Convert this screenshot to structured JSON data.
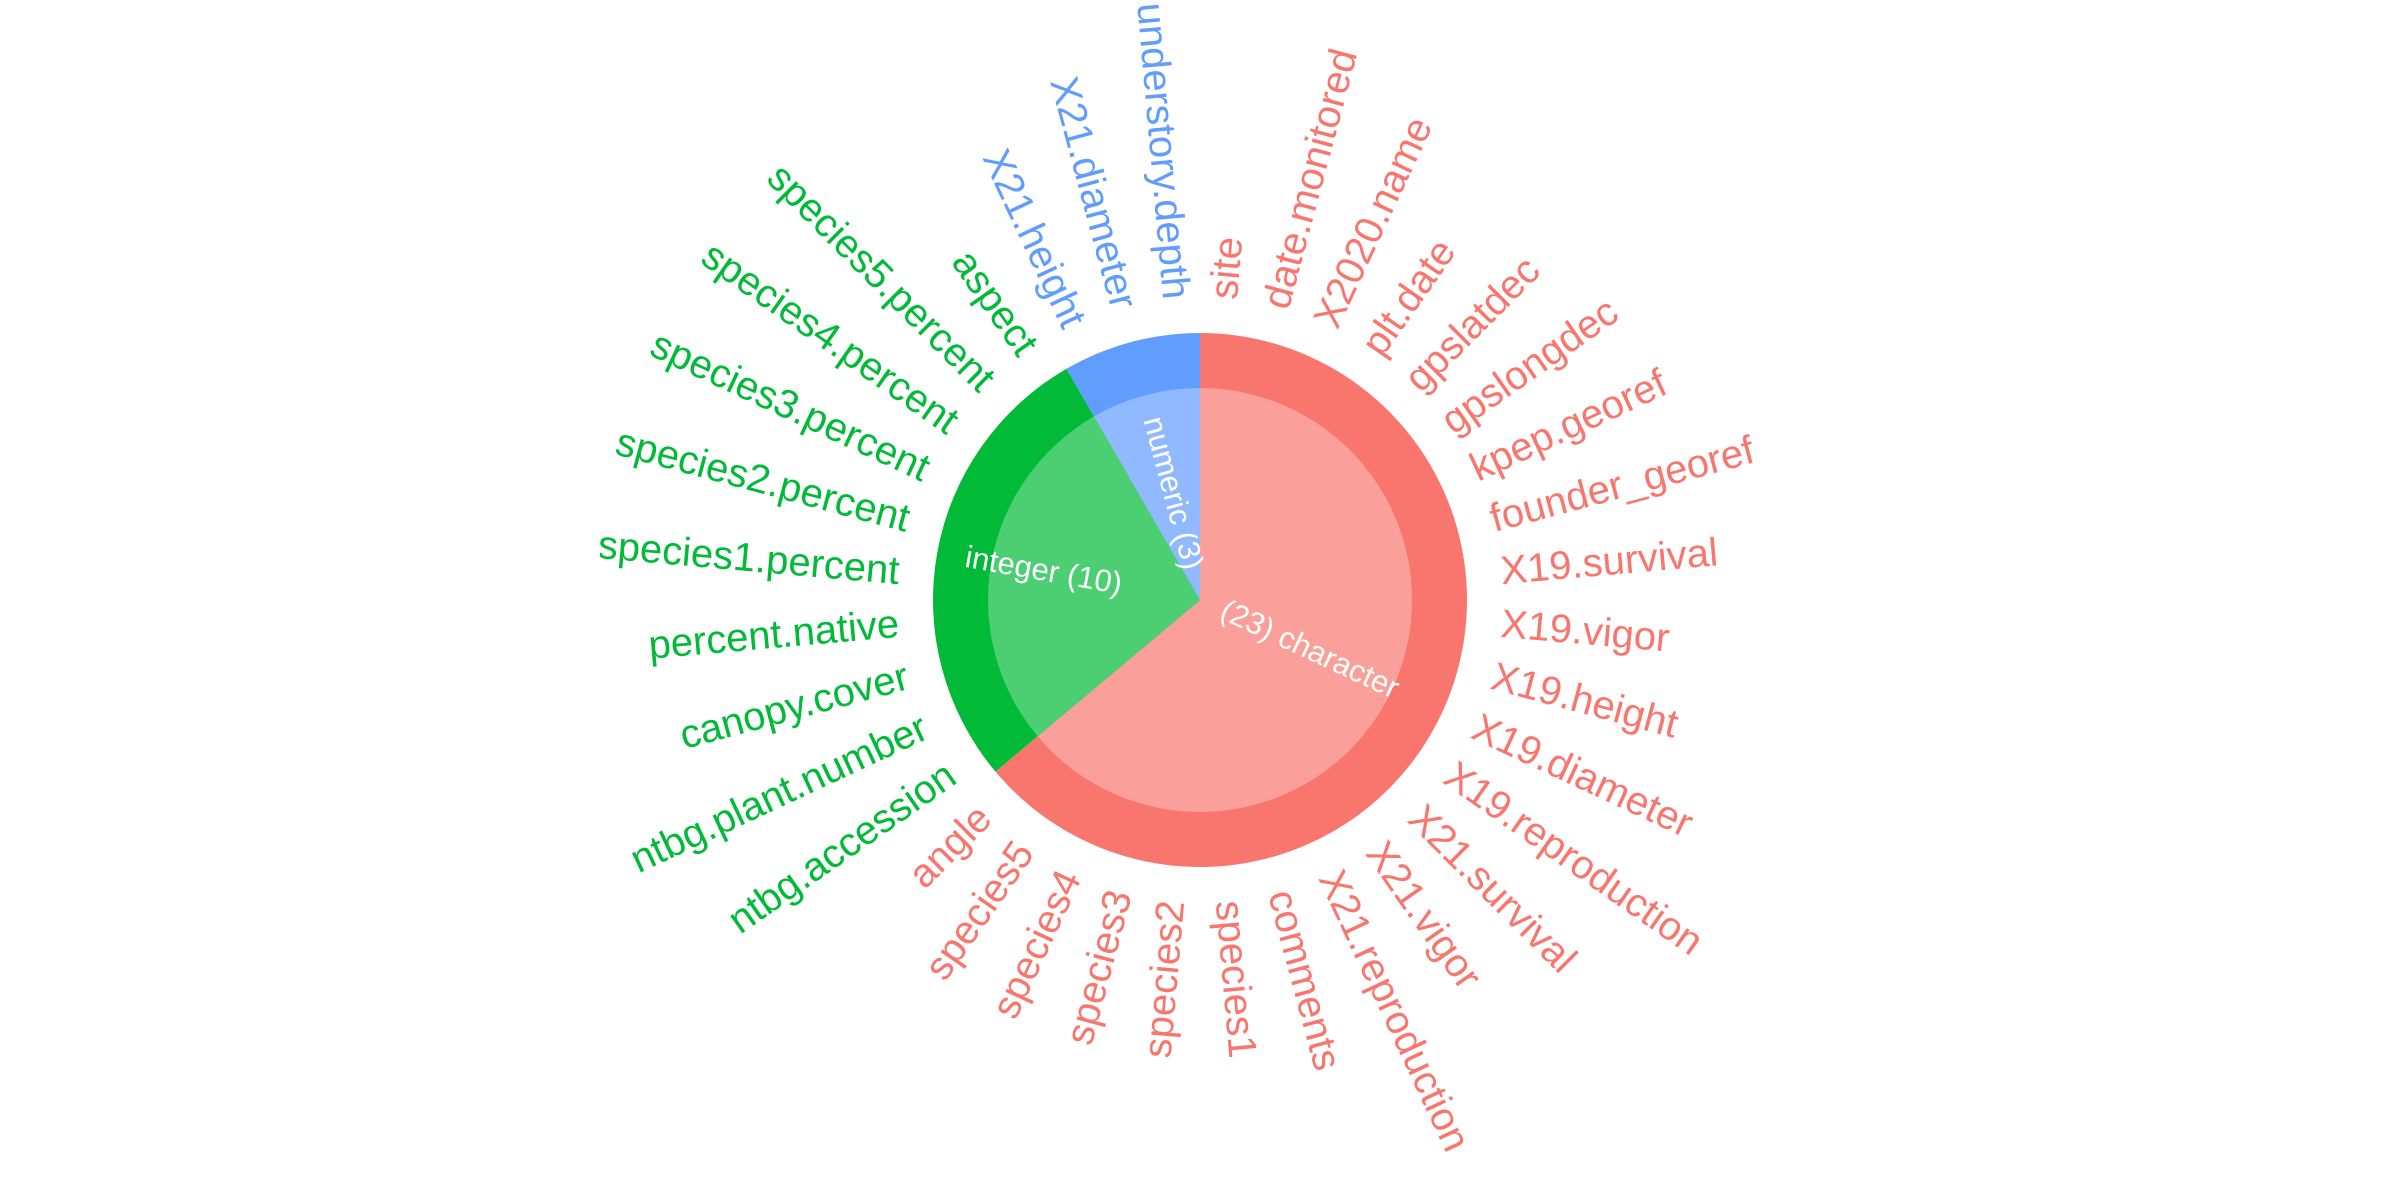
{
  "chart_data": {
    "type": "pie",
    "title": "",
    "slices": [
      {
        "name": "character",
        "count": 23,
        "label": "(23) character",
        "color": "#F8766D",
        "inner_color": "#FA9F99"
      },
      {
        "name": "integer",
        "count": 10,
        "label": "integer (10)",
        "color": "#00BA38",
        "inner_color": "#4CCF73"
      },
      {
        "name": "numeric",
        "count": 3,
        "label": "numeric (3)",
        "color": "#619CFF",
        "inner_color": "#91B9FF"
      }
    ],
    "variables": [
      {
        "name": "site",
        "type": "character"
      },
      {
        "name": "date.monitored",
        "type": "character"
      },
      {
        "name": "X2020.name",
        "type": "character"
      },
      {
        "name": "plt.date",
        "type": "character"
      },
      {
        "name": "gpslatdec",
        "type": "character"
      },
      {
        "name": "gpslongdec",
        "type": "character"
      },
      {
        "name": "kpep.georef",
        "type": "character"
      },
      {
        "name": "founder_georef",
        "type": "character"
      },
      {
        "name": "X19.survival",
        "type": "character"
      },
      {
        "name": "X19.vigor",
        "type": "character"
      },
      {
        "name": "X19.height",
        "type": "character"
      },
      {
        "name": "X19.diameter",
        "type": "character"
      },
      {
        "name": "X19.reproduction",
        "type": "character"
      },
      {
        "name": "X21.survival",
        "type": "character"
      },
      {
        "name": "X21.vigor",
        "type": "character"
      },
      {
        "name": "X21.reproduction",
        "type": "character"
      },
      {
        "name": "comments",
        "type": "character"
      },
      {
        "name": "species1",
        "type": "character"
      },
      {
        "name": "species2",
        "type": "character"
      },
      {
        "name": "species3",
        "type": "character"
      },
      {
        "name": "species4",
        "type": "character"
      },
      {
        "name": "species5",
        "type": "character"
      },
      {
        "name": "angle",
        "type": "character"
      },
      {
        "name": "ntbg.accession",
        "type": "integer"
      },
      {
        "name": "ntbg.plant.number",
        "type": "integer"
      },
      {
        "name": "canopy.cover",
        "type": "integer"
      },
      {
        "name": "percent.native",
        "type": "integer"
      },
      {
        "name": "species1.percent",
        "type": "integer"
      },
      {
        "name": "species2.percent",
        "type": "integer"
      },
      {
        "name": "species3.percent",
        "type": "integer"
      },
      {
        "name": "species4.percent",
        "type": "integer"
      },
      {
        "name": "species5.percent",
        "type": "integer"
      },
      {
        "name": "aspect",
        "type": "integer"
      },
      {
        "name": "X21.height",
        "type": "numeric"
      },
      {
        "name": "X21.diameter",
        "type": "numeric"
      },
      {
        "name": "understory.depth",
        "type": "numeric"
      }
    ]
  }
}
